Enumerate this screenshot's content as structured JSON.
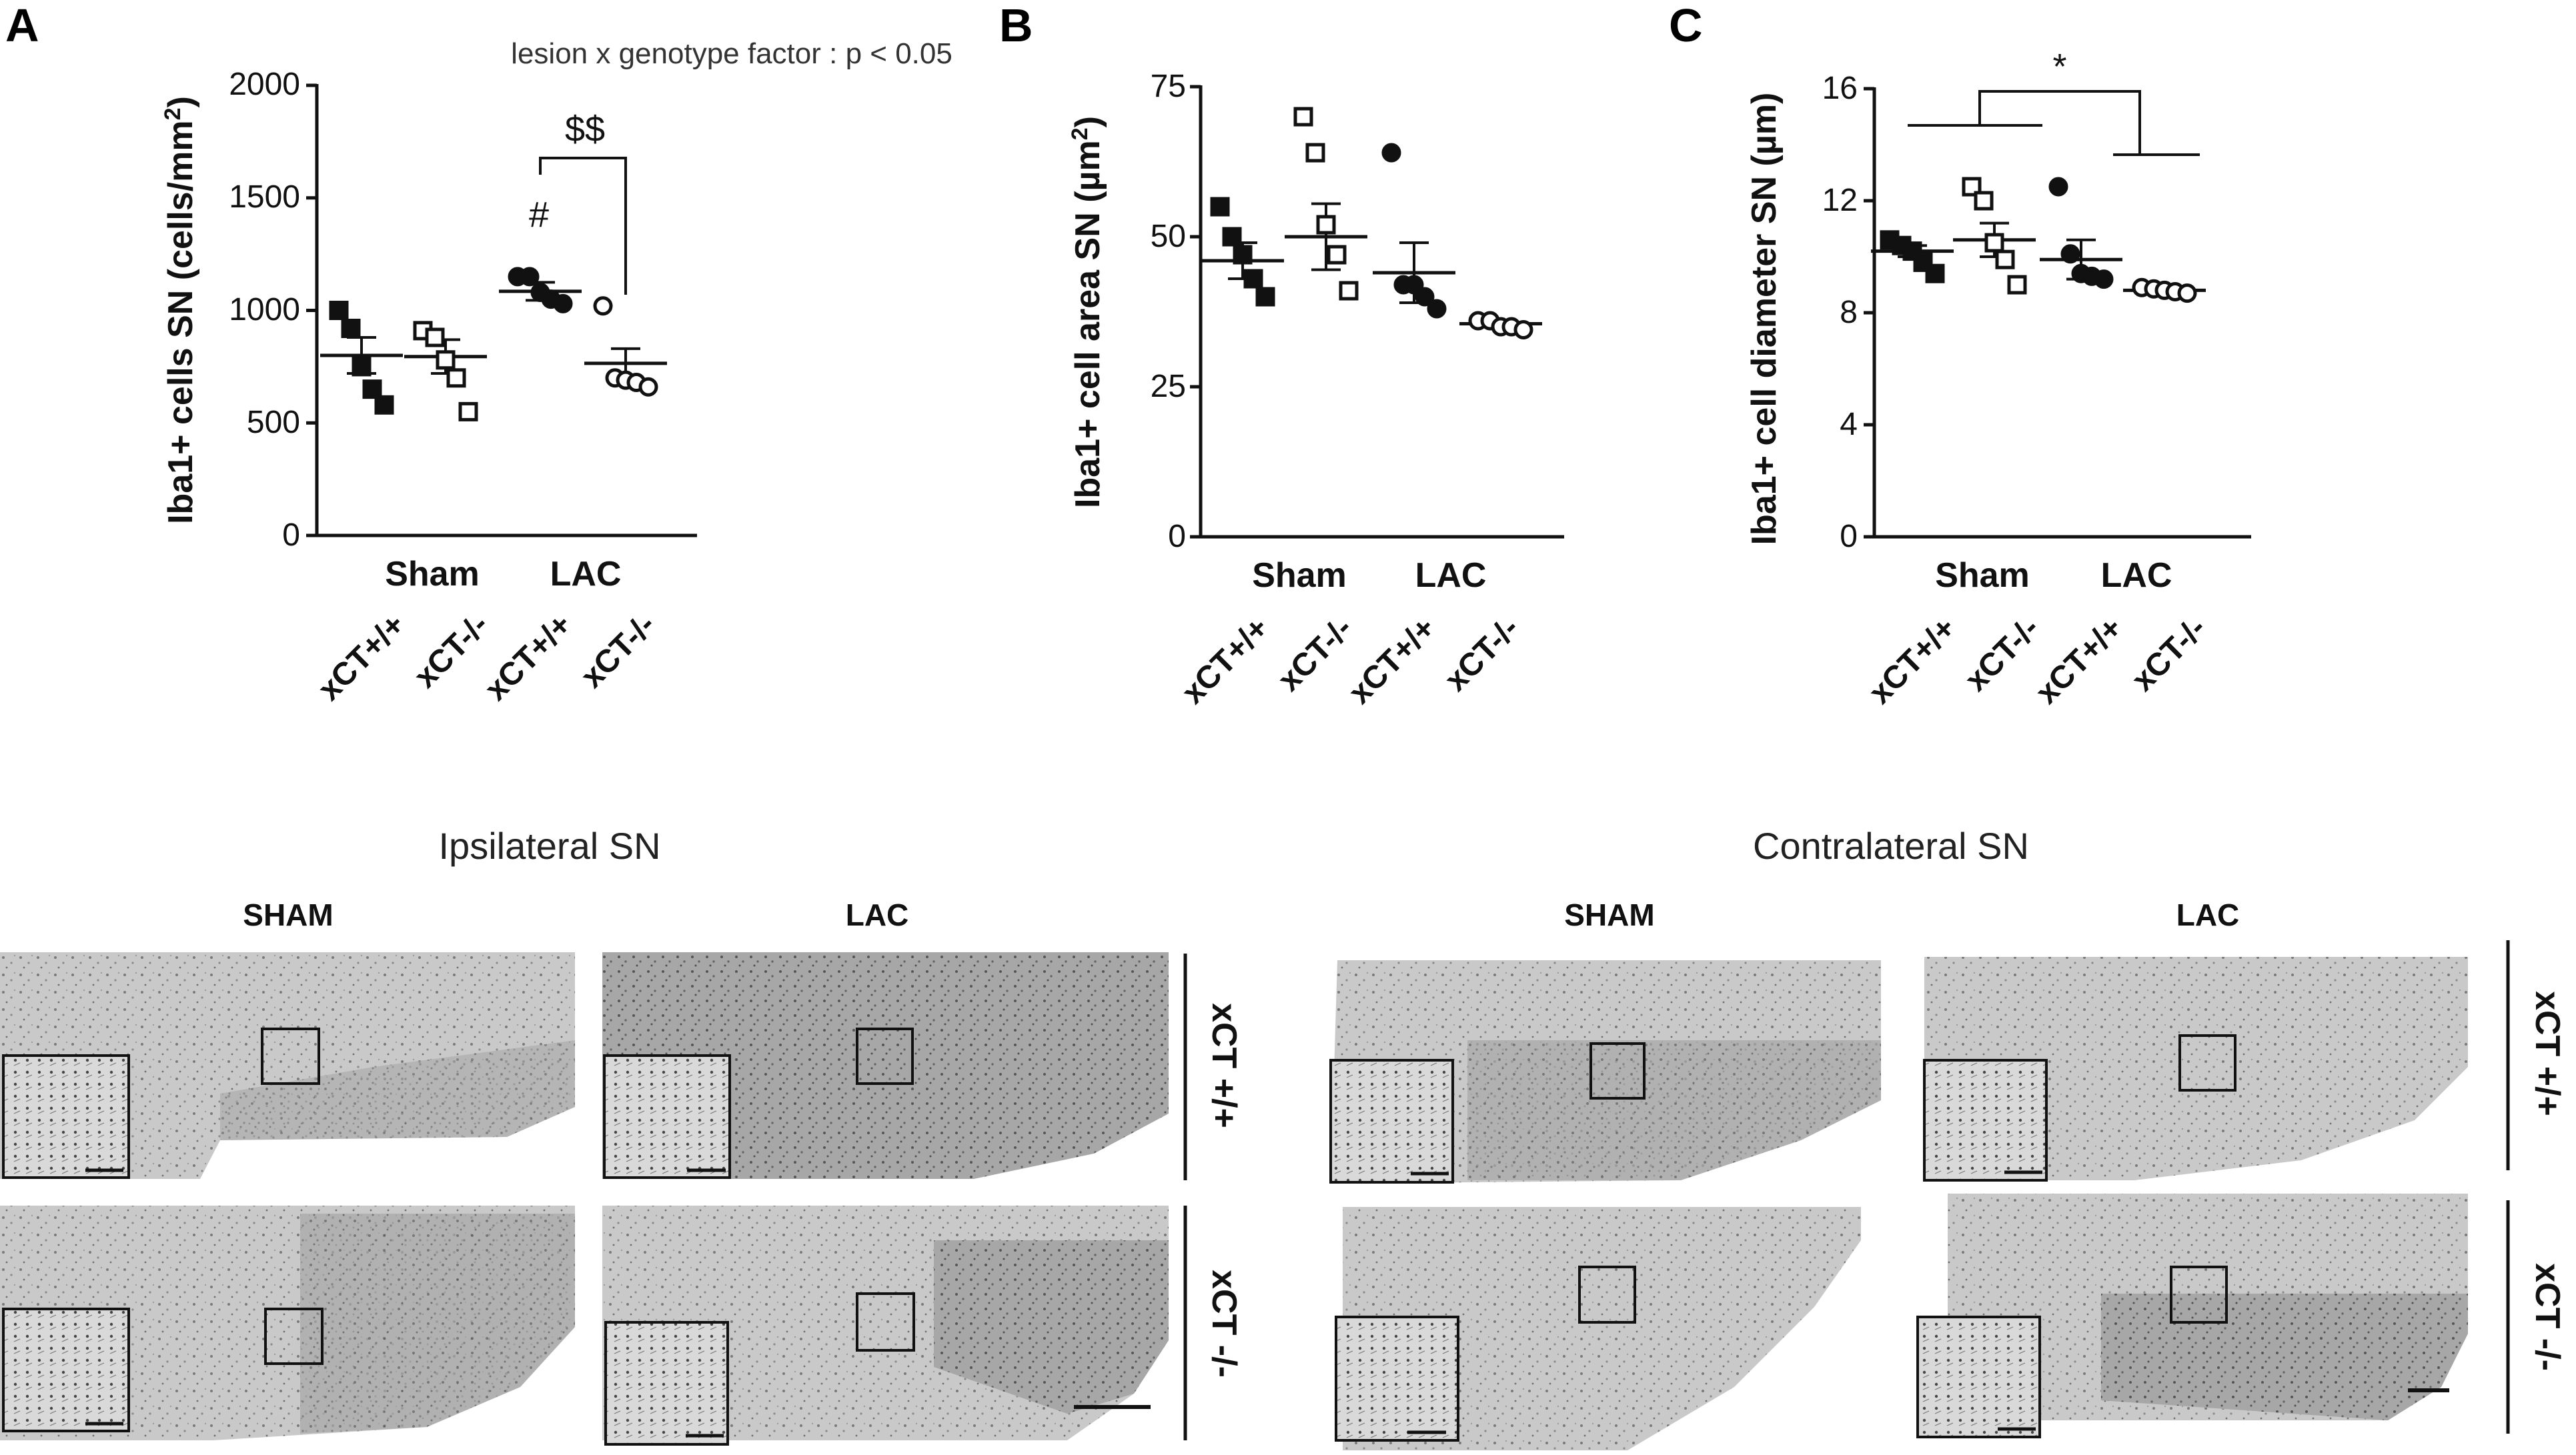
{
  "charts": [
    {
      "letter": "A",
      "ylabel": "Iba1+ cells SN (cells/mm",
      "ylabel_sup": "2",
      "ylabel_close": ")",
      "yticks": [
        "0",
        "500",
        "1000",
        "1500",
        "2000"
      ],
      "annotation": "lesion x genotype factor : p < 0.05",
      "groups": [
        "Sham",
        "LAC"
      ],
      "categories": [
        "xCT+/+",
        "xCT-/-",
        "xCT+/+",
        "xCT-/-"
      ],
      "sig_hash": "#",
      "sig_dollar": "$$"
    },
    {
      "letter": "B",
      "ylabel": "Iba1+ cell area SN (µm",
      "ylabel_sup": "2",
      "ylabel_close": ")",
      "yticks": [
        "0",
        "25",
        "50",
        "75"
      ],
      "groups": [
        "Sham",
        "LAC"
      ],
      "categories": [
        "xCT+/+",
        "xCT-/-",
        "xCT+/+",
        "xCT-/-"
      ]
    },
    {
      "letter": "C",
      "ylabel": "Iba1+ cell diameter SN (µm)",
      "yticks": [
        "0",
        "4",
        "8",
        "12",
        "16"
      ],
      "groups": [
        "Sham",
        "LAC"
      ],
      "categories": [
        "xCT+/+",
        "xCT-/-",
        "xCT+/+",
        "xCT-/-"
      ],
      "sig_star": "*"
    }
  ],
  "chart_data": [
    {
      "type": "scatter",
      "ylim": [
        0,
        2000
      ],
      "categories": [
        "Sham xCT+/+",
        "Sham xCT-/-",
        "LAC xCT+/+",
        "LAC xCT-/-"
      ],
      "markers": [
        "filled-square",
        "open-square",
        "filled-circle",
        "open-circle"
      ],
      "points": [
        [
          1000,
          920,
          750,
          650,
          580
        ],
        [
          910,
          880,
          780,
          700,
          550
        ],
        [
          1150,
          1150,
          1080,
          1050,
          1030
        ],
        [
          1020,
          700,
          690,
          680,
          660
        ]
      ],
      "mean": [
        800,
        795,
        1085,
        765
      ],
      "sem": [
        80,
        75,
        40,
        65
      ],
      "annotation": "lesion x genotype factor : p < 0.05"
    },
    {
      "type": "scatter",
      "ylim": [
        0,
        75
      ],
      "categories": [
        "Sham xCT+/+",
        "Sham xCT-/-",
        "LAC xCT+/+",
        "LAC xCT-/-"
      ],
      "markers": [
        "filled-square",
        "open-square",
        "filled-circle",
        "open-circle"
      ],
      "points": [
        [
          55,
          50,
          47,
          43,
          40
        ],
        [
          70,
          64,
          52,
          47,
          41
        ],
        [
          64,
          42,
          42,
          40,
          38
        ],
        [
          36,
          36,
          35,
          35,
          34.5
        ]
      ],
      "mean": [
        46,
        50,
        44,
        35.5
      ],
      "sem": [
        3,
        5.5,
        5,
        0.5
      ]
    },
    {
      "type": "scatter",
      "ylim": [
        0,
        16
      ],
      "categories": [
        "Sham xCT+/+",
        "Sham xCT-/-",
        "LAC xCT+/+",
        "LAC xCT-/-"
      ],
      "markers": [
        "filled-square",
        "open-square",
        "filled-circle",
        "open-circle"
      ],
      "points": [
        [
          10.6,
          10.4,
          10.2,
          9.8,
          9.4
        ],
        [
          12.5,
          12.0,
          10.5,
          9.9,
          9.0
        ],
        [
          12.5,
          10.1,
          9.4,
          9.3,
          9.2
        ],
        [
          8.9,
          8.85,
          8.8,
          8.75,
          8.7
        ]
      ],
      "mean": [
        10.2,
        10.6,
        9.9,
        8.8
      ],
      "sem": [
        0.2,
        0.6,
        0.7,
        0.05
      ]
    }
  ],
  "micrographs": {
    "ipsi_title": "Ipsilateral SN",
    "contra_title": "Contralateral SN",
    "col_sham": "SHAM",
    "col_lac": "LAC",
    "row_wt": "xCT +/+",
    "row_ko": "xCT -/-"
  }
}
